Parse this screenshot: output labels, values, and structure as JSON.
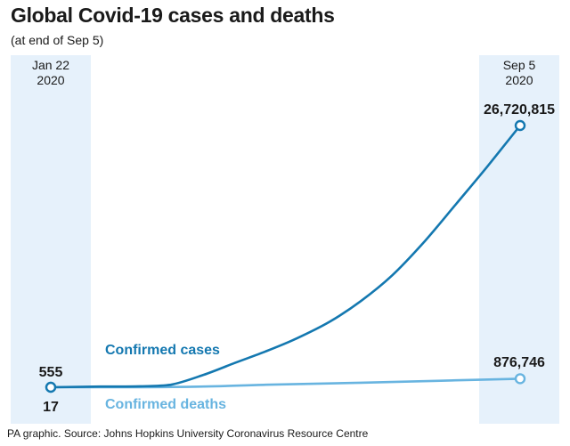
{
  "header": {
    "title": "Global Covid-19 cases and deaths",
    "subtitle": "(at end of Sep 5)"
  },
  "footer": {
    "source": "PA graphic. Source: Johns Hopkins University Coronavirus Resource Centre"
  },
  "colors": {
    "band": "#e6f1fb",
    "cases": "#1478b0",
    "deaths": "#68b4e0",
    "text": "#1a1a1a"
  },
  "chart_data": {
    "type": "line",
    "title": "Global Covid-19 cases and deaths",
    "subtitle": "(at end of Sep 5)",
    "x_start": {
      "month_day": "Jan 22",
      "year": "2020"
    },
    "x_end": {
      "month_day": "Sep 5",
      "year": "2020"
    },
    "series": [
      {
        "name": "Confirmed cases",
        "color": "#1478b0",
        "start_value": 555,
        "end_value": 26720815,
        "start_label": "555",
        "end_label": "26,720,815",
        "x": [
          "2020-01-22",
          "2020-02-15",
          "2020-03-05",
          "2020-03-20",
          "2020-04-05",
          "2020-04-20",
          "2020-05-05",
          "2020-05-20",
          "2020-06-05",
          "2020-06-20",
          "2020-07-05",
          "2020-07-20",
          "2020-08-05",
          "2020-08-20",
          "2020-09-05"
        ],
        "values": [
          555,
          69000,
          97000,
          250000,
          1270000,
          2480000,
          3660000,
          4990000,
          6700000,
          8800000,
          11400000,
          14700000,
          18700000,
          22500000,
          26720815
        ]
      },
      {
        "name": "Confirmed deaths",
        "color": "#68b4e0",
        "start_value": 17,
        "end_value": 876746,
        "start_label": "17",
        "end_label": "876,746",
        "x": [
          "2020-01-22",
          "2020-03-05",
          "2020-04-05",
          "2020-05-05",
          "2020-06-05",
          "2020-07-05",
          "2020-08-05",
          "2020-09-05"
        ],
        "values": [
          17,
          3300,
          69000,
          256000,
          395000,
          535000,
          705000,
          876746
        ]
      }
    ],
    "grid": false,
    "legend": "inline labels"
  }
}
